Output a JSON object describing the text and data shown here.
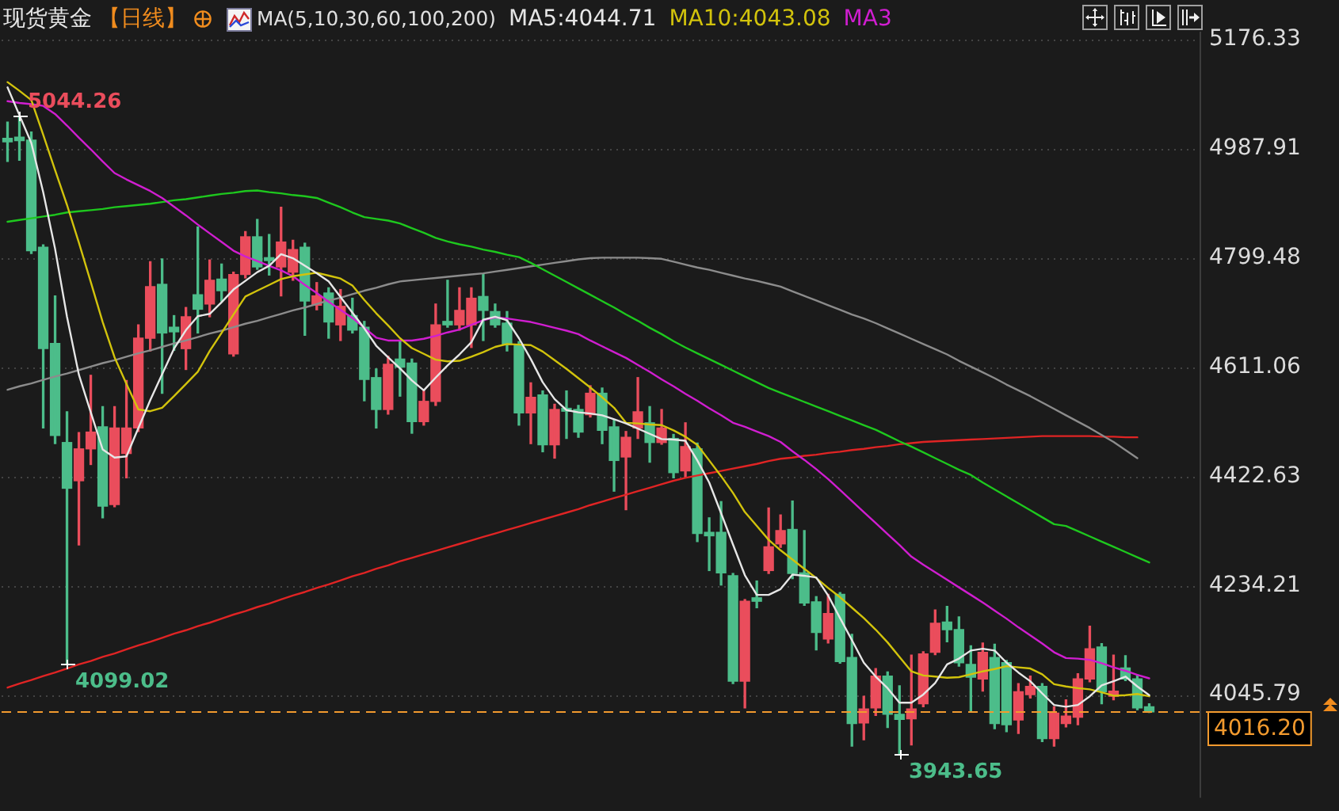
{
  "chart_data": {
    "type": "candlestick",
    "title": "现货黄金",
    "subtitle": "【日线】",
    "legend_title": "MA(5,10,30,60,100,200)",
    "legend": "top",
    "grid": "y",
    "tick_labels": "y",
    "marker": "none",
    "categories": [
      null,
      null,
      null,
      null,
      null,
      null,
      null,
      null,
      null,
      null,
      null,
      null,
      null,
      null,
      null,
      null,
      null,
      null,
      null,
      null,
      null,
      null,
      null,
      null,
      null,
      null,
      null,
      null,
      null,
      null,
      null,
      null,
      null,
      null,
      null,
      null,
      null,
      null,
      null,
      null,
      null,
      null,
      null,
      null,
      null,
      null,
      null,
      null,
      null,
      null,
      null,
      null,
      null,
      null,
      null,
      null,
      null,
      null,
      null,
      null,
      null,
      null,
      null,
      null,
      null,
      null,
      null,
      null,
      null,
      null,
      null,
      null,
      null,
      null,
      null,
      null,
      null,
      null,
      null,
      null,
      null,
      null,
      null,
      null,
      null,
      null,
      null,
      null,
      null,
      null,
      null,
      null,
      null,
      null,
      null,
      null,
      null
    ],
    "ohlc": [
      [
        5006,
        5034,
        4966,
        5000
      ],
      [
        5008,
        5044.26,
        4968,
        5002
      ],
      [
        5003,
        5017,
        4807,
        4812
      ],
      [
        4818,
        4822,
        4506,
        4643
      ],
      [
        4652,
        4734,
        4479,
        4493
      ],
      [
        4481,
        4534,
        4099.02,
        4402
      ],
      [
        4415,
        4498,
        4304,
        4470
      ],
      [
        4470,
        4597,
        4443,
        4499
      ],
      [
        4508,
        4543,
        4351,
        4371
      ],
      [
        4374,
        4543,
        4370,
        4506
      ],
      [
        4462,
        4588,
        4420,
        4506
      ],
      [
        4506,
        4684,
        4500,
        4661
      ],
      [
        4661,
        4793,
        4639,
        4750
      ],
      [
        4754,
        4798,
        4566,
        4670
      ],
      [
        4680,
        4700,
        4640,
        4672
      ],
      [
        4643,
        4714,
        4607,
        4698
      ],
      [
        4736,
        4853,
        4670,
        4711
      ],
      [
        4720,
        4796,
        4698,
        4761
      ],
      [
        4763,
        4789,
        4725,
        4743
      ],
      [
        4634,
        4775,
        4630,
        4771
      ],
      [
        4771,
        4845,
        4765,
        4836
      ],
      [
        4836,
        4866,
        4780,
        4784
      ],
      [
        4800,
        4840,
        4770,
        4795
      ],
      [
        4784,
        4887,
        4734,
        4827
      ],
      [
        4775,
        4830,
        4761,
        4814
      ],
      [
        4818,
        4825,
        4666,
        4725
      ],
      [
        4718,
        4757,
        4710,
        4734
      ],
      [
        4739,
        4748,
        4661,
        4689
      ],
      [
        4684,
        4745,
        4657,
        4716
      ],
      [
        4700,
        4730,
        4670,
        4675
      ],
      [
        4680,
        4690,
        4553,
        4590
      ],
      [
        4593,
        4608,
        4506,
        4538
      ],
      [
        4538,
        4630,
        4530,
        4616
      ],
      [
        4625,
        4657,
        4561,
        4611
      ],
      [
        4618,
        4625,
        4497,
        4517
      ],
      [
        4517,
        4570,
        4511,
        4552
      ],
      [
        4552,
        4720,
        4545,
        4684
      ],
      [
        4690,
        4761,
        4680,
        4684
      ],
      [
        4684,
        4748,
        4675,
        4709
      ],
      [
        4684,
        4748,
        4645,
        4730
      ],
      [
        4733,
        4771,
        4657,
        4709
      ],
      [
        4707,
        4720,
        4680,
        4684
      ],
      [
        4687,
        4707,
        4639,
        4650
      ],
      [
        4648,
        4655,
        4511,
        4532
      ],
      [
        4532,
        4584,
        4479,
        4559
      ],
      [
        4563,
        4570,
        4465,
        4477
      ],
      [
        4477,
        4547,
        4454,
        4538
      ],
      [
        4540,
        4570,
        4488,
        4535
      ],
      [
        4538,
        4545,
        4490,
        4499
      ],
      [
        4529,
        4579,
        4525,
        4566
      ],
      [
        4566,
        4575,
        4479,
        4502
      ],
      [
        4508,
        4520,
        4397,
        4450
      ],
      [
        4456,
        4500,
        4365,
        4490
      ],
      [
        4506,
        4593,
        4488,
        4534
      ],
      [
        4515,
        4543,
        4447,
        4481
      ],
      [
        4481,
        4538,
        4478,
        4506
      ],
      [
        4488,
        4495,
        4420,
        4429
      ],
      [
        4432,
        4515,
        4420,
        4474
      ],
      [
        4470,
        4480,
        4310,
        4324
      ],
      [
        4326,
        4351,
        4260,
        4320
      ],
      [
        4326,
        4379,
        4235,
        4256
      ],
      [
        4251,
        4255,
        4065,
        4069
      ],
      [
        4069,
        4210,
        4023,
        4207
      ],
      [
        4213,
        4242,
        4196,
        4207
      ],
      [
        4260,
        4368,
        4255,
        4301
      ],
      [
        4306,
        4356,
        4300,
        4329
      ],
      [
        4331,
        4380,
        4246,
        4255
      ],
      [
        4256,
        4329,
        4200,
        4204
      ],
      [
        4206,
        4215,
        4123,
        4153
      ],
      [
        4142,
        4219,
        4135,
        4186
      ],
      [
        4219,
        4222,
        4100,
        4103
      ],
      [
        4110,
        4150,
        3957,
        3996
      ],
      [
        3997,
        4043,
        3968,
        4021
      ],
      [
        4023,
        4091,
        4010,
        4078
      ],
      [
        4078,
        4085,
        3989,
        4012
      ],
      [
        4012,
        4061,
        3943.65,
        4003
      ],
      [
        4004,
        4114,
        3959,
        4021
      ],
      [
        4030,
        4120,
        4025,
        4116
      ],
      [
        4119,
        4192,
        4115,
        4169
      ],
      [
        4171,
        4198,
        4137,
        4158
      ],
      [
        4158,
        4180,
        4095,
        4101
      ],
      [
        4098,
        4130,
        4018,
        4076
      ],
      [
        4073,
        4135,
        4052,
        4119
      ],
      [
        4110,
        4133,
        3987,
        3996
      ],
      [
        4101,
        4105,
        3982,
        3994
      ],
      [
        4002,
        4065,
        3979,
        4051
      ],
      [
        4046,
        4078,
        4040,
        4060
      ],
      [
        4060,
        4065,
        3965,
        3970
      ],
      [
        3970,
        4025,
        3957,
        4014
      ],
      [
        3996,
        4037,
        3990,
        4009
      ],
      [
        4007,
        4082,
        3994,
        4073
      ],
      [
        4073,
        4164,
        4068,
        4125
      ],
      [
        4128,
        4134,
        4030,
        4051
      ],
      [
        4043,
        4114,
        4037,
        4052
      ],
      [
        4092,
        4113,
        4070,
        4073
      ],
      [
        4073,
        4080,
        4020,
        4023
      ],
      [
        4025,
        4030,
        4015,
        4016.2
      ]
    ],
    "value_labels": [
      null,
      "5044.26",
      null,
      null,
      null,
      "4099.02",
      null,
      null,
      null,
      null,
      null,
      null,
      null,
      null,
      null,
      null,
      null,
      null,
      null,
      null,
      null,
      null,
      null,
      null,
      null,
      null,
      null,
      null,
      null,
      null,
      null,
      null,
      null,
      null,
      null,
      null,
      null,
      null,
      null,
      null,
      null,
      null,
      null,
      null,
      null,
      null,
      null,
      null,
      null,
      null,
      null,
      null,
      null,
      null,
      null,
      null,
      null,
      null,
      null,
      null,
      null,
      null,
      null,
      null,
      null,
      null,
      null,
      null,
      null,
      null,
      null,
      null,
      null,
      null,
      null,
      "3943.65",
      null,
      null,
      null,
      null,
      null,
      null,
      null,
      null,
      null,
      null,
      null,
      null,
      null,
      null,
      null,
      null,
      null,
      null,
      null,
      null,
      null
    ],
    "colors": [
      "#4cbd8a",
      "#4cbd8a",
      "#4cbd8a",
      "#4cbd8a",
      "#4cbd8a",
      "#4cbd8a",
      "#ea4d5c",
      "#ea4d5c",
      "#4cbd8a",
      "#ea4d5c",
      "#ea4d5c",
      "#ea4d5c",
      "#ea4d5c",
      "#4cbd8a",
      "#4cbd8a",
      "#ea4d5c",
      "#4cbd8a",
      "#ea4d5c",
      "#4cbd8a",
      "#ea4d5c",
      "#ea4d5c",
      "#4cbd8a",
      "#4cbd8a",
      "#ea4d5c",
      "#ea4d5c",
      "#4cbd8a",
      "#ea4d5c",
      "#4cbd8a",
      "#ea4d5c",
      "#4cbd8a",
      "#4cbd8a",
      "#4cbd8a",
      "#ea4d5c",
      "#4cbd8a",
      "#4cbd8a",
      "#ea4d5c",
      "#ea4d5c",
      "#4cbd8a",
      "#ea4d5c",
      "#ea4d5c",
      "#4cbd8a",
      "#4cbd8a",
      "#4cbd8a",
      "#4cbd8a",
      "#ea4d5c",
      "#4cbd8a",
      "#ea4d5c",
      "#4cbd8a",
      "#4cbd8a",
      "#ea4d5c",
      "#4cbd8a",
      "#4cbd8a",
      "#ea4d5c",
      "#ea4d5c",
      "#4cbd8a",
      "#ea4d5c",
      "#4cbd8a",
      "#ea4d5c",
      "#4cbd8a",
      "#4cbd8a",
      "#4cbd8a",
      "#4cbd8a",
      "#ea4d5c",
      "#4cbd8a",
      "#ea4d5c",
      "#ea4d5c",
      "#4cbd8a",
      "#4cbd8a",
      "#4cbd8a",
      "#ea4d5c",
      "#4cbd8a",
      "#4cbd8a",
      "#ea4d5c",
      "#ea4d5c",
      "#4cbd8a",
      "#4cbd8a",
      "#ea4d5c",
      "#ea4d5c",
      "#ea4d5c",
      "#4cbd8a",
      "#4cbd8a",
      "#4cbd8a",
      "#ea4d5c",
      "#4cbd8a",
      "#4cbd8a",
      "#ea4d5c",
      "#ea4d5c",
      "#4cbd8a",
      "#ea4d5c",
      "#ea4d5c",
      "#ea4d5c",
      "#ea4d5c",
      "#4cbd8a",
      "#ea4d5c",
      "#4cbd8a",
      "#4cbd8a",
      "#4cbd8a"
    ],
    "series": [
      {
        "name": "MA5:4044.71",
        "type": "line",
        "color": "#e6e6e6",
        "values": [
          5094,
          5046,
          4998,
          4913,
          4815,
          4698,
          4598,
          4533,
          4469,
          4455,
          4457,
          4506,
          4554,
          4599,
          4643,
          4675,
          4699,
          4703,
          4723,
          4745,
          4760,
          4775,
          4786,
          4806,
          4799,
          4786,
          4773,
          4759,
          4732,
          4705,
          4678,
          4648,
          4628,
          4609,
          4588,
          4571,
          4593,
          4614,
          4633,
          4654,
          4693,
          4698,
          4692,
          4661,
          4625,
          4585,
          4556,
          4537,
          4533,
          4531,
          4528,
          4521,
          4514,
          4505,
          4496,
          4487,
          4486,
          4484,
          4450,
          4412,
          4359,
          4305,
          4252,
          4218,
          4218,
          4228,
          4253,
          4251,
          4248,
          4217,
          4178,
          4140,
          4101,
          4077,
          4057,
          4032,
          4032,
          4046,
          4066,
          4098,
          4108,
          4122,
          4125,
          4122,
          4101,
          4084,
          4069,
          4048,
          4028,
          4025,
          4028,
          4043,
          4062,
          4069,
          4077,
          4060,
          4045
        ]
      },
      {
        "name": "MA10:4043.08",
        "type": "line",
        "color": "#d2c30c",
        "values": [
          5103,
          5088,
          5072,
          5012,
          4951,
          4891,
          4826,
          4758,
          4689,
          4628,
          4582,
          4538,
          4535,
          4541,
          4561,
          4582,
          4603,
          4639,
          4670,
          4702,
          4733,
          4743,
          4753,
          4763,
          4768,
          4771,
          4774,
          4769,
          4764,
          4752,
          4727,
          4704,
          4683,
          4661,
          4644,
          4634,
          4624,
          4621,
          4622,
          4629,
          4637,
          4646,
          4651,
          4650,
          4649,
          4638,
          4623,
          4608,
          4592,
          4576,
          4559,
          4541,
          4515,
          4514,
          4512,
          4511,
          4502,
          4491,
          4477,
          4450,
          4423,
          4394,
          4361,
          4337,
          4313,
          4295,
          4279,
          4263,
          4247,
          4230,
          4214,
          4196,
          4178,
          4158,
          4136,
          4111,
          4086,
          4079,
          4077,
          4075,
          4076,
          4081,
          4086,
          4090,
          4095,
          4093,
          4091,
          4081,
          4064,
          4060,
          4057,
          4055,
          4050,
          4044,
          4045,
          4047,
          4043
        ]
      },
      {
        "name": "MA3",
        "type": "line",
        "color": "#d01ed0",
        "values": [
          5070,
          5067,
          5065,
          5062,
          5048,
          5028,
          5007,
          4987,
          4966,
          4946,
          4935,
          4925,
          4915,
          4903,
          4888,
          4873,
          4857,
          4842,
          4827,
          4812,
          4802,
          4794,
          4786,
          4778,
          4768,
          4753,
          4739,
          4724,
          4710,
          4696,
          4679,
          4662,
          4657,
          4657,
          4657,
          4660,
          4665,
          4671,
          4676,
          4684,
          4692,
          4697,
          4695,
          4692,
          4689,
          4684,
          4679,
          4674,
          4668,
          4657,
          4647,
          4637,
          4627,
          4615,
          4603,
          4590,
          4578,
          4565,
          4553,
          4540,
          4528,
          4515,
          4508,
          4500,
          4492,
          4482,
          4466,
          4451,
          4435,
          4418,
          4399,
          4380,
          4361,
          4342,
          4323,
          4304,
          4284,
          4270,
          4257,
          4244,
          4231,
          4218,
          4205,
          4191,
          4177,
          4162,
          4148,
          4134,
          4119,
          4109,
          4108,
          4106,
          4100,
          4093,
          4087,
          4080,
          4074
        ]
      },
      {
        "type": "line",
        "color": "#1ec81e",
        "values": [
          4862,
          4865,
          4868,
          4871,
          4874,
          4878,
          4880,
          4882,
          4884,
          4887,
          4889,
          4891,
          4893,
          4896,
          4899,
          4901,
          4904,
          4907,
          4910,
          4912,
          4915,
          4916,
          4913,
          4911,
          4908,
          4906,
          4903,
          4895,
          4887,
          4878,
          4870,
          4867,
          4864,
          4859,
          4851,
          4843,
          4834,
          4828,
          4823,
          4819,
          4814,
          4810,
          4805,
          4801,
          4791,
          4780,
          4769,
          4758,
          4747,
          4736,
          4725,
          4714,
          4702,
          4691,
          4679,
          4668,
          4656,
          4645,
          4635,
          4625,
          4615,
          4605,
          4595,
          4585,
          4575,
          4567,
          4559,
          4551,
          4543,
          4535,
          4527,
          4519,
          4511,
          4503,
          4493,
          4483,
          4474,
          4464,
          4454,
          4444,
          4434,
          4425,
          4412,
          4400,
          4388,
          4376,
          4364,
          4352,
          4340,
          4337,
          4328,
          4319,
          4310,
          4301,
          4292,
          4283,
          4274
        ]
      },
      {
        "type": "line",
        "color": "#8c8c8c",
        "values": [
          4572,
          4578,
          4583,
          4589,
          4595,
          4600,
          4606,
          4612,
          4618,
          4623,
          4629,
          4635,
          4640,
          4646,
          4652,
          4657,
          4663,
          4669,
          4674,
          4680,
          4686,
          4691,
          4697,
          4703,
          4709,
          4714,
          4720,
          4726,
          4731,
          4737,
          4743,
          4748,
          4754,
          4759,
          4761,
          4763,
          4765,
          4767,
          4769,
          4771,
          4773,
          4776,
          4779,
          4782,
          4785,
          4788,
          4791,
          4794,
          4797,
          4799,
          4800,
          4800,
          4800,
          4800,
          4799,
          4798,
          4793,
          4788,
          4783,
          4779,
          4774,
          4769,
          4764,
          4760,
          4755,
          4750,
          4742,
          4734,
          4726,
          4718,
          4710,
          4702,
          4695,
          4687,
          4678,
          4669,
          4660,
          4651,
          4642,
          4633,
          4622,
          4612,
          4602,
          4592,
          4581,
          4571,
          4561,
          4550,
          4539,
          4528,
          4517,
          4506,
          4494,
          4482,
          4468,
          4454,
          null
        ]
      },
      {
        "type": "line",
        "color": "#e02424",
        "values": [
          4058,
          4065,
          4071,
          4078,
          4084,
          4091,
          4098,
          4104,
          4111,
          4117,
          4124,
          4131,
          4137,
          4144,
          4151,
          4157,
          4164,
          4170,
          4177,
          4184,
          4190,
          4197,
          4203,
          4210,
          4217,
          4223,
          4230,
          4236,
          4243,
          4250,
          4256,
          4263,
          4269,
          4276,
          4282,
          4288,
          4294,
          4300,
          4306,
          4312,
          4318,
          4324,
          4330,
          4336,
          4342,
          4348,
          4354,
          4360,
          4366,
          4373,
          4379,
          4385,
          4391,
          4397,
          4403,
          4409,
          4415,
          4420,
          4424,
          4428,
          4432,
          4436,
          4440,
          4444,
          4449,
          4453,
          4455,
          4458,
          4460,
          4463,
          4465,
          4468,
          4470,
          4473,
          4475,
          4478,
          4480,
          4482,
          4483,
          4484,
          4485,
          4486,
          4487,
          4488,
          4489,
          4490,
          4491,
          4492,
          4492,
          4492,
          4492,
          4492,
          4491,
          4491,
          4490,
          4490,
          null
        ]
      }
    ],
    "ylim": [
      3868,
      5190
    ],
    "yticks": [
      4045.79,
      4234.21,
      4422.63,
      4611.06,
      4799.48,
      4987.91,
      5176.33
    ],
    "ref_lines": [
      {
        "axis": "y",
        "value": 4016.2,
        "label": "4016.20",
        "color": "#f29a2e",
        "line_style": "dashed"
      }
    ]
  }
}
